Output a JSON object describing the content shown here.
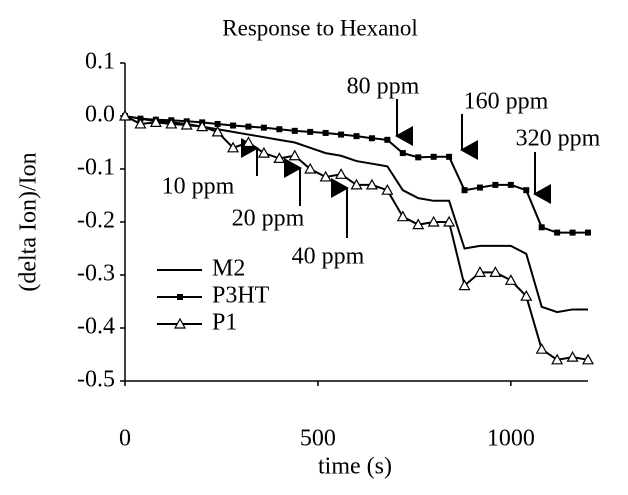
{
  "chart_data": {
    "type": "line",
    "title": "Response to Hexanol",
    "x_label": "time (s)",
    "y_label": "(delta Ion)/Ion",
    "x": [
      0,
      40,
      80,
      120,
      160,
      200,
      240,
      280,
      320,
      360,
      400,
      440,
      480,
      520,
      560,
      600,
      640,
      680,
      720,
      760,
      800,
      840,
      880,
      920,
      960,
      1000,
      1040,
      1080,
      1120,
      1160,
      1200
    ],
    "series": [
      {
        "name": "M2",
        "color": "#000000",
        "marker": "none",
        "values": [
          0,
          -0.005,
          -0.01,
          -0.012,
          -0.015,
          -0.02,
          -0.025,
          -0.03,
          -0.035,
          -0.04,
          -0.045,
          -0.05,
          -0.06,
          -0.07,
          -0.075,
          -0.085,
          -0.09,
          -0.095,
          -0.14,
          -0.155,
          -0.16,
          -0.16,
          -0.25,
          -0.245,
          -0.245,
          -0.245,
          -0.26,
          -0.36,
          -0.37,
          -0.365,
          -0.365
        ]
      },
      {
        "name": "P3HT",
        "color": "#000000",
        "marker": "square",
        "values": [
          0,
          -0.005,
          -0.007,
          -0.008,
          -0.01,
          -0.012,
          -0.015,
          -0.018,
          -0.02,
          -0.022,
          -0.025,
          -0.028,
          -0.03,
          -0.032,
          -0.035,
          -0.038,
          -0.042,
          -0.045,
          -0.07,
          -0.078,
          -0.077,
          -0.077,
          -0.14,
          -0.135,
          -0.13,
          -0.13,
          -0.14,
          -0.21,
          -0.22,
          -0.22,
          -0.22
        ]
      },
      {
        "name": "P1",
        "color": "#000000",
        "marker": "triangle",
        "values": [
          0,
          -0.015,
          -0.012,
          -0.015,
          -0.017,
          -0.02,
          -0.03,
          -0.06,
          -0.05,
          -0.07,
          -0.08,
          -0.075,
          -0.1,
          -0.115,
          -0.11,
          -0.13,
          -0.13,
          -0.14,
          -0.19,
          -0.205,
          -0.2,
          -0.2,
          -0.32,
          -0.295,
          -0.295,
          -0.31,
          -0.34,
          -0.44,
          -0.46,
          -0.455,
          -0.46
        ]
      }
    ],
    "xlim": [
      0,
      1200
    ],
    "xticks": [
      0,
      500,
      1000
    ],
    "ylim": [
      -0.5,
      0.1
    ],
    "yticks": [
      -0.5,
      {
        "value": -0.4,
        "label": "-0.4"
      },
      {
        "value": -0.3,
        "label": "-0.3"
      },
      {
        "value": -0.2,
        "label": "-0.2"
      },
      {
        "value": -0.1,
        "label": "-0.1"
      },
      {
        "value": 0,
        "label": "0.0"
      },
      0.1
    ],
    "annotations": [
      "10 ppm",
      "20 ppm",
      "40 ppm",
      "80 ppm",
      "160 ppm",
      "320 ppm"
    ],
    "legend": "lower left",
    "grid": false
  }
}
